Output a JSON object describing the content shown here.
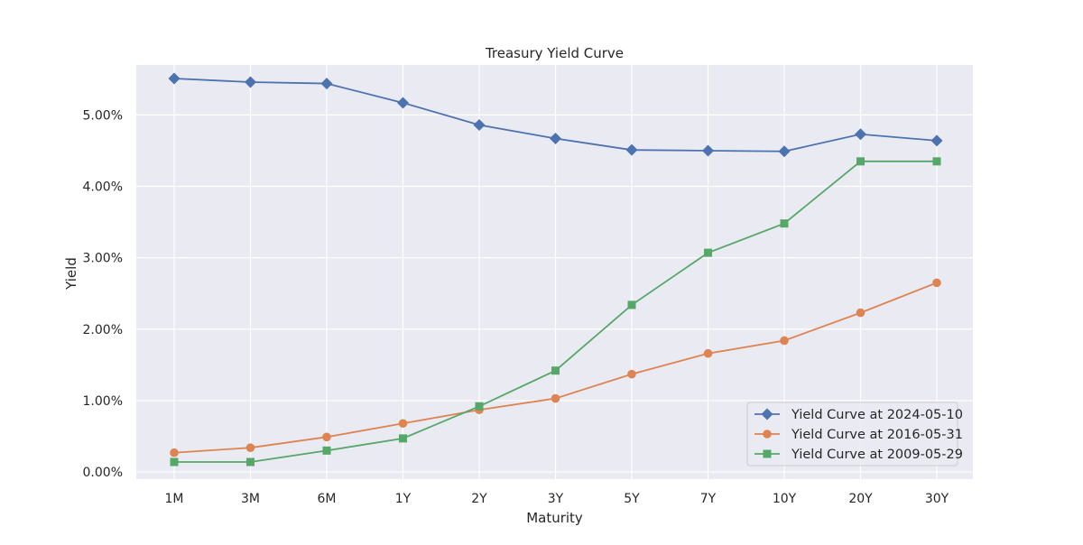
{
  "chart_data": {
    "type": "line",
    "title": "Treasury Yield Curve",
    "xlabel": "Maturity",
    "ylabel": "Yield",
    "categories": [
      "1M",
      "3M",
      "6M",
      "1Y",
      "2Y",
      "3Y",
      "5Y",
      "7Y",
      "10Y",
      "20Y",
      "30Y"
    ],
    "ylim": [
      -0.1,
      5.7
    ],
    "yticks": [
      0,
      1,
      2,
      3,
      4,
      5
    ],
    "ytick_labels": [
      "0.00%",
      "1.00%",
      "2.00%",
      "3.00%",
      "4.00%",
      "5.00%"
    ],
    "grid": true,
    "legend_position": "lower-right",
    "series": [
      {
        "name": "Yield Curve at 2024-05-10",
        "color": "#4c72b0",
        "marker": "diamond",
        "values": [
          5.51,
          5.46,
          5.44,
          5.17,
          4.86,
          4.67,
          4.51,
          4.5,
          4.49,
          4.73,
          4.64
        ]
      },
      {
        "name": "Yield Curve at 2016-05-31",
        "color": "#dd8452",
        "marker": "circle",
        "values": [
          0.27,
          0.34,
          0.49,
          0.68,
          0.87,
          1.03,
          1.37,
          1.66,
          1.84,
          2.23,
          2.65
        ]
      },
      {
        "name": "Yield Curve at 2009-05-29",
        "color": "#55a868",
        "marker": "square",
        "values": [
          0.14,
          0.14,
          0.3,
          0.47,
          0.92,
          1.42,
          2.34,
          3.07,
          3.48,
          4.35,
          4.35
        ]
      }
    ]
  }
}
